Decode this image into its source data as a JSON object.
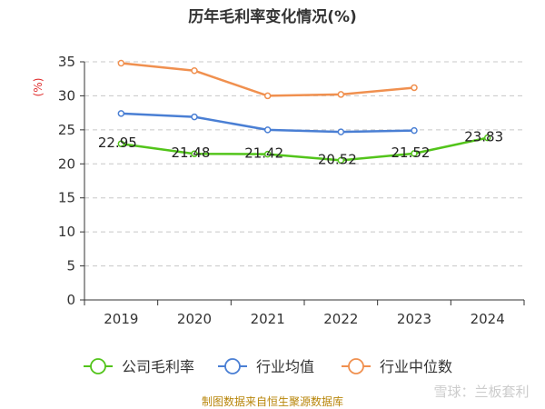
{
  "chart_data": {
    "type": "line",
    "title": "历年毛利率变化情况(%)",
    "ylabel": "(%)",
    "categories": [
      "2019",
      "2020",
      "2021",
      "2022",
      "2023",
      "2024"
    ],
    "ylim": [
      0,
      35
    ],
    "yticks": [
      0,
      5,
      10,
      15,
      20,
      25,
      30,
      35
    ],
    "grid": true,
    "legend_position": "bottom",
    "series": [
      {
        "name": "公司毛利率",
        "color": "#52c41a",
        "values": [
          22.95,
          21.48,
          21.42,
          20.52,
          21.52,
          23.83
        ],
        "labels": [
          "22.95",
          "21.48",
          "21.42",
          "20.52",
          "21.52",
          "23.83"
        ]
      },
      {
        "name": "行业均值",
        "color": "#4a7fd4",
        "values": [
          27.4,
          26.9,
          25.0,
          24.7,
          24.9,
          null
        ]
      },
      {
        "name": "行业中位数",
        "color": "#f0904f",
        "values": [
          34.8,
          33.7,
          30.0,
          30.2,
          31.2,
          null
        ]
      }
    ]
  },
  "source_note": "制图数据来自恒生聚源数据库",
  "watermark": "雪球：兰板套利"
}
